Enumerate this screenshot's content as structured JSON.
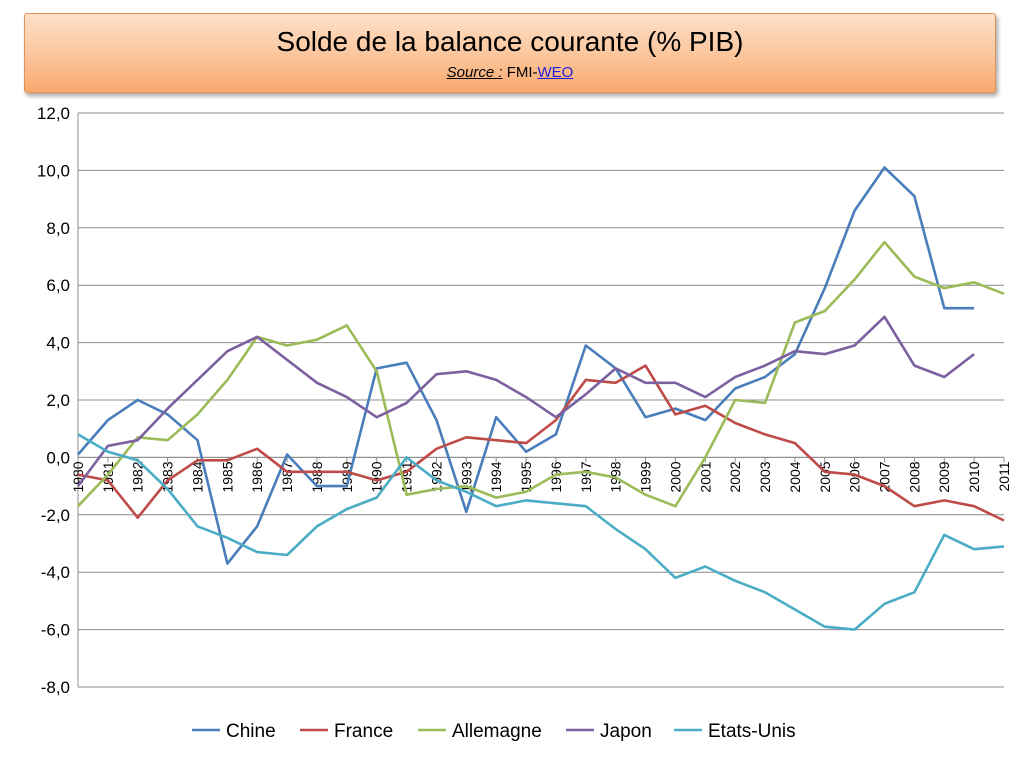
{
  "title": "Solde de la balance courante (% PIB)",
  "source": {
    "label": "Source :",
    "org": "FMI-",
    "link": "WEO"
  },
  "chart_data": {
    "type": "line",
    "title": "Solde de la balance courante (% PIB)",
    "x": [
      "1980",
      "1981",
      "1982",
      "1983",
      "1984",
      "1985",
      "1986",
      "1987",
      "1988",
      "1989",
      "1990",
      "1991",
      "1992",
      "1993",
      "1994",
      "1995",
      "1996",
      "1997",
      "1998",
      "1999",
      "2000",
      "2001",
      "2002",
      "2003",
      "2004",
      "2005",
      "2006",
      "2007",
      "2008",
      "2009",
      "2010",
      "2011"
    ],
    "ylim": [
      -8,
      12
    ],
    "yticks": [
      12,
      10,
      8,
      6,
      4,
      2,
      0,
      -2,
      -4,
      -6,
      -8
    ],
    "ytick_labels": [
      "12,0",
      "10,0",
      "8,0",
      "6,0",
      "4,0",
      "2,0",
      "0,0",
      "-2,0",
      "-4,0",
      "-6,0",
      "-8,0"
    ],
    "grid": true,
    "legend": "bottom",
    "series": [
      {
        "name": "Chine",
        "color": "#4a7ebb",
        "values": [
          0.1,
          1.3,
          2.0,
          1.5,
          0.6,
          -3.7,
          -2.4,
          0.1,
          -1.0,
          -1.0,
          3.1,
          3.3,
          1.3,
          -1.9,
          1.4,
          0.2,
          0.8,
          3.9,
          3.1,
          1.4,
          1.7,
          1.3,
          2.4,
          2.8,
          3.6,
          5.9,
          8.6,
          10.1,
          9.1,
          5.2,
          5.2,
          null
        ]
      },
      {
        "name": "France",
        "color": "#be4b48",
        "values": [
          -0.6,
          -0.8,
          -2.1,
          -0.8,
          -0.1,
          -0.1,
          0.3,
          -0.5,
          -0.5,
          -0.5,
          -0.8,
          -0.5,
          0.3,
          0.7,
          0.6,
          0.5,
          1.3,
          2.7,
          2.6,
          3.2,
          1.5,
          1.8,
          1.2,
          0.8,
          0.5,
          -0.5,
          -0.6,
          -1.0,
          -1.7,
          -1.5,
          -1.7,
          -2.2
        ]
      },
      {
        "name": "Allemagne",
        "color": "#9bbb59",
        "values": [
          -1.7,
          -0.6,
          0.7,
          0.6,
          1.5,
          2.7,
          4.2,
          3.9,
          4.1,
          4.6,
          3.0,
          -1.3,
          -1.1,
          -1.0,
          -1.4,
          -1.2,
          -0.6,
          -0.5,
          -0.7,
          -1.3,
          -1.7,
          0.0,
          2.0,
          1.9,
          4.7,
          5.1,
          6.2,
          7.5,
          6.3,
          5.9,
          6.1,
          5.7
        ]
      },
      {
        "name": "Japon",
        "color": "#7d60a0",
        "values": [
          -1.0,
          0.4,
          0.6,
          1.7,
          2.7,
          3.7,
          4.2,
          3.4,
          2.6,
          2.1,
          1.4,
          1.9,
          2.9,
          3.0,
          2.7,
          2.1,
          1.4,
          2.2,
          3.1,
          2.6,
          2.6,
          2.1,
          2.8,
          3.2,
          3.7,
          3.6,
          3.9,
          4.9,
          3.2,
          2.8,
          3.6,
          null
        ]
      },
      {
        "name": "Etats-Unis",
        "color": "#4bacc6",
        "values": [
          0.8,
          0.2,
          -0.1,
          -1.1,
          -2.4,
          -2.8,
          -3.3,
          -3.4,
          -2.4,
          -1.8,
          -1.4,
          0.0,
          -0.8,
          -1.2,
          -1.7,
          -1.5,
          -1.6,
          -1.7,
          -2.5,
          -3.2,
          -4.2,
          -3.8,
          -4.3,
          -4.7,
          -5.3,
          -5.9,
          -6.0,
          -5.1,
          -4.7,
          -2.7,
          -3.2,
          -3.1
        ]
      }
    ]
  }
}
